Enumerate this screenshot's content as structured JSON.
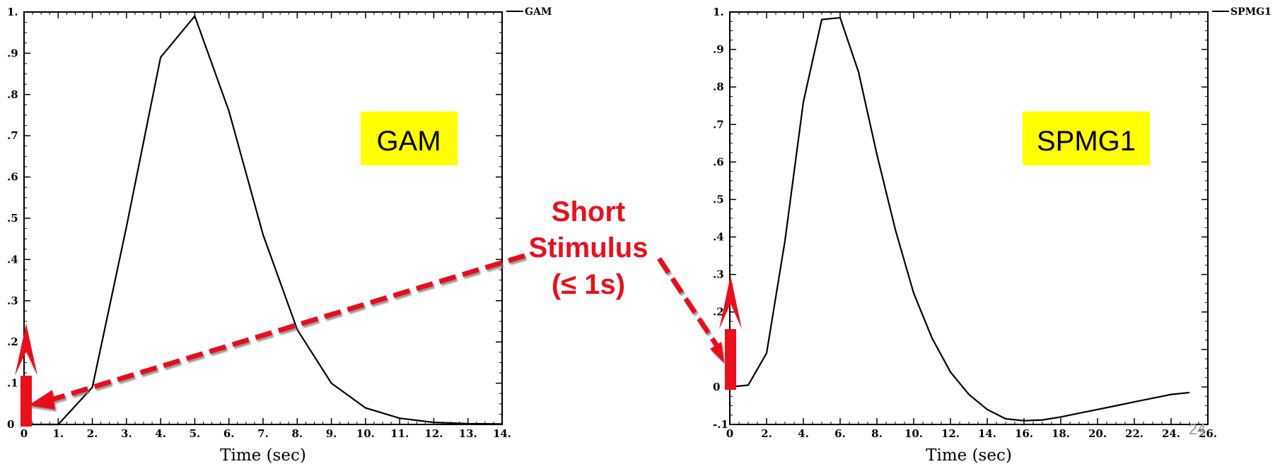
{
  "chart_data": [
    {
      "type": "line",
      "legend": "GAM",
      "label_box": "GAM",
      "xlabel": "Time (sec)",
      "x_ticks": [
        "0",
        "1.",
        "2.",
        "3.",
        "4.",
        "5.",
        "6.",
        "7.",
        "8.",
        "9.",
        "10.",
        "11.",
        "12.",
        "13.",
        "14."
      ],
      "y_ticks": [
        "0",
        ".1",
        ".2",
        ".3",
        ".4",
        ".5",
        ".6",
        ".7",
        ".8",
        ".9",
        "1."
      ],
      "xlim": [
        0,
        14
      ],
      "ylim": [
        0,
        1
      ],
      "series": [
        {
          "x": [
            0,
            1,
            2,
            3,
            4,
            5,
            6,
            7,
            8,
            9,
            10,
            11,
            12,
            13,
            14
          ],
          "y": [
            0,
            0,
            0.09,
            0.48,
            0.89,
            0.99,
            0.76,
            0.46,
            0.23,
            0.1,
            0.04,
            0.015,
            0.005,
            0.002,
            0.001
          ]
        }
      ]
    },
    {
      "type": "line",
      "legend": "SPMG1",
      "label_box": "SPMG1",
      "xlabel": "Time (sec)",
      "x_ticks": [
        "0",
        "2.",
        "4.",
        "6.",
        "8.",
        "10.",
        "12.",
        "14.",
        "16.",
        "18.",
        "20.",
        "22.",
        "24.",
        "26."
      ],
      "y_ticks": [
        "-.1",
        "0",
        ".1",
        ".2",
        ".3",
        ".4",
        ".5",
        ".6",
        ".7",
        ".8",
        ".9",
        "1."
      ],
      "xlim": [
        0,
        26
      ],
      "ylim": [
        -0.1,
        1
      ],
      "series": [
        {
          "x": [
            0,
            1,
            2,
            3,
            4,
            5,
            6,
            7,
            8,
            9,
            10,
            11,
            12,
            13,
            14,
            15,
            16,
            17,
            18,
            19,
            20,
            21,
            22,
            23,
            24,
            25
          ],
          "y": [
            0,
            0.005,
            0.09,
            0.39,
            0.76,
            0.98,
            0.985,
            0.84,
            0.62,
            0.42,
            0.25,
            0.13,
            0.04,
            -0.02,
            -0.06,
            -0.085,
            -0.09,
            -0.088,
            -0.08,
            -0.07,
            -0.06,
            -0.05,
            -0.04,
            -0.03,
            -0.02,
            -0.015
          ]
        }
      ]
    }
  ],
  "annotation": {
    "callout_lines": [
      "Short",
      "Stimulus",
      "(≤ 1s)"
    ]
  },
  "slide_number": "24",
  "colors": {
    "callout": "#e8101c",
    "label_box": "#ffff00",
    "line": "#000000"
  }
}
